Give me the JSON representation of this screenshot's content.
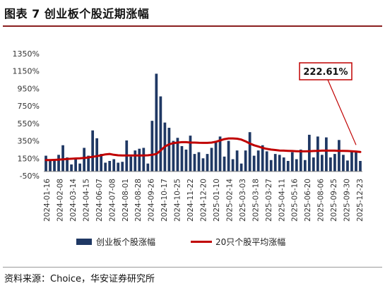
{
  "title": "图表 7 创业板个股近期涨幅",
  "source": "资料来源：Choice，华安证券研究所",
  "colors": {
    "bar": "#1f3864",
    "line": "#c00000",
    "callout_border": "#c00000",
    "title_rule": "#8a1f1f"
  },
  "chart_data": {
    "type": "bar+line",
    "title": "",
    "xlabel": "",
    "ylabel": "",
    "ylim": [
      -50,
      1350
    ],
    "yticks": [
      -50,
      150,
      350,
      550,
      750,
      950,
      1150,
      1350
    ],
    "ytick_labels": [
      "-50%",
      "150%",
      "350%",
      "550%",
      "750%",
      "950%",
      "1150%",
      "1350%"
    ],
    "x_tick_labels": [
      "2024-01-16",
      "2024-02-08",
      "2024-03-14",
      "2024-04-15",
      "2024-06-07",
      "2024-07-08",
      "2024-08-01",
      "2024-08-28",
      "2024-09-26",
      "2024-10-17",
      "2024-10-25",
      "2024-11-22",
      "2024-12-20",
      "2025-01-10",
      "2025-02-14",
      "2025-03-03",
      "2025-03-18",
      "2025-03-27",
      "2025-04-11",
      "2025-05-16",
      "2025-06-20",
      "2025-08-06",
      "2025-09-25",
      "2025-09-30",
      "2025-12-23"
    ],
    "grid": false,
    "legend_position": "bottom",
    "series": [
      {
        "name": "创业板个股涨幅",
        "type": "bar",
        "values": [
          180,
          120,
          130,
          190,
          300,
          160,
          80,
          140,
          90,
          270,
          180,
          470,
          380,
          200,
          100,
          120,
          140,
          100,
          110,
          355,
          170,
          240,
          260,
          270,
          90,
          580,
          1120,
          860,
          560,
          500,
          350,
          385,
          290,
          250,
          410,
          200,
          220,
          150,
          200,
          270,
          350,
          400,
          170,
          350,
          140,
          240,
          90,
          240,
          450,
          180,
          240,
          300,
          230,
          130,
          200,
          190,
          160,
          120,
          220,
          140,
          250,
          130,
          420,
          160,
          400,
          190,
          390,
          160,
          200,
          360,
          190,
          125,
          240,
          230,
          120
        ]
      },
      {
        "name": "20只个股平均涨幅",
        "type": "line",
        "values": [
          130,
          130,
          132,
          135,
          138,
          142,
          145,
          148,
          150,
          155,
          160,
          168,
          175,
          185,
          195,
          200,
          190,
          185,
          182,
          182,
          182,
          182,
          182,
          183,
          185,
          190,
          200,
          240,
          285,
          310,
          325,
          330,
          335,
          335,
          330,
          330,
          328,
          327,
          327,
          330,
          340,
          355,
          370,
          378,
          378,
          375,
          365,
          345,
          320,
          300,
          285,
          270,
          258,
          250,
          245,
          240,
          238,
          236,
          234,
          232,
          230,
          230,
          232,
          234,
          236,
          238,
          238,
          238,
          238,
          236,
          236,
          234,
          232,
          228,
          222.61
        ]
      }
    ],
    "annotation": {
      "text": "222.61%",
      "value": 222.61,
      "target_series": "20只个股平均涨幅"
    }
  }
}
